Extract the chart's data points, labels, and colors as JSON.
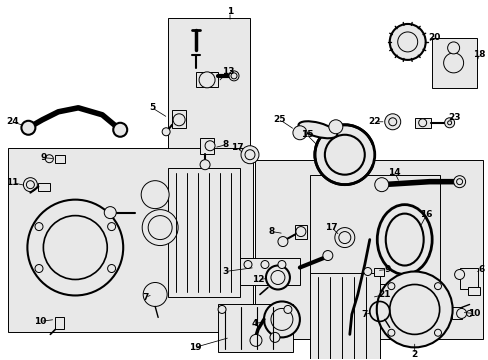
{
  "bg_color": "#ffffff",
  "fig_width": 4.89,
  "fig_height": 3.6,
  "dpi": 100,
  "box_color": "#e8e8e8",
  "line_color": "#000000",
  "lw": 0.7
}
